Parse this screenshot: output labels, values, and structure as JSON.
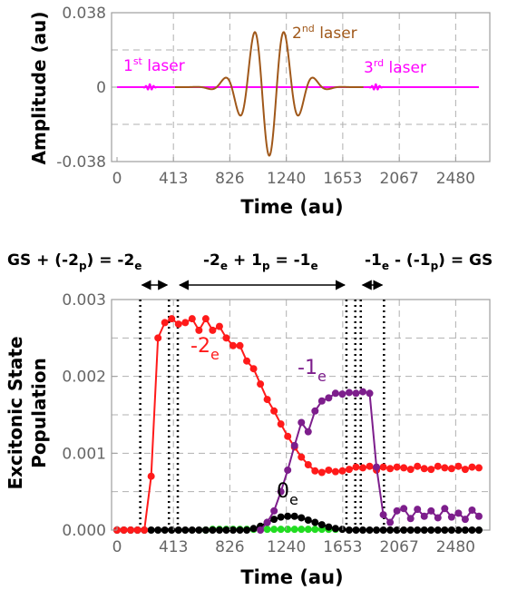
{
  "chart_data": [
    {
      "type": "line",
      "ylabel": "Amplitude (au)",
      "xlabel": "Time (au)",
      "xlim": [
        -40,
        2730
      ],
      "ylim": [
        -0.038,
        0.038
      ],
      "x_ticks": [
        "0",
        "413",
        "826",
        "1240",
        "1653",
        "2067",
        "2480"
      ],
      "y_ticks": [
        "-0.038",
        "0",
        "0.038"
      ],
      "grid": true,
      "colors": {
        "pulse1": "#ff00ff",
        "pulse2": "#a0581a",
        "pulse3": "#ff00ff"
      },
      "series": [
        {
          "key": "laser1",
          "label_main": "1",
          "label_sup": "st",
          "label_rest": " laser",
          "envelope": {
            "center": 240,
            "width": 30,
            "amplitude": 0.0015,
            "omega": 0.22
          }
        },
        {
          "key": "laser2",
          "label_main": "2",
          "label_sup": "nd",
          "label_rest": " laser",
          "envelope": {
            "center": 1115,
            "width": 230,
            "amplitude": 0.035,
            "omega": 0.0285
          }
        },
        {
          "key": "laser3",
          "label_main": "3",
          "label_sup": "rd",
          "label_rest": " laser",
          "envelope": {
            "center": 1895,
            "width": 30,
            "amplitude": 0.0015,
            "omega": 0.22
          }
        }
      ]
    },
    {
      "type": "line",
      "ylabel_lines": [
        "Excitonic State",
        "Population"
      ],
      "xlabel": "Time (au)",
      "xlim": [
        -40,
        2730
      ],
      "ylim": [
        0,
        0.003
      ],
      "x_ticks": [
        "0",
        "413",
        "826",
        "1240",
        "1653",
        "2067",
        "2480"
      ],
      "y_ticks": [
        "0.000",
        "0.001",
        "0.002",
        "0.003"
      ],
      "grid": true,
      "header": {
        "left_main": "GS + (-2",
        "left_sub": "p",
        "left_mid": ") = -2",
        "left_sub2": "e",
        "mid_main": "-2",
        "mid_sub": "e",
        "mid_mid": " + 1",
        "mid_sub2": "p",
        "mid_mid2": " = -1",
        "mid_sub3": "e",
        "right_main": "-1",
        "right_sub": "e",
        "right_mid": " - (-1",
        "right_sub2": "p",
        "right_end": ") = GS"
      },
      "vlines_x": [
        170,
        380,
        445,
        1680,
        1745,
        1785,
        1955
      ],
      "series": [
        {
          "key": "m2e",
          "name_main": "-2",
          "name_sub": "e",
          "color": "#ff1a1a",
          "x": [
            0,
            50,
            100,
            150,
            200,
            250,
            300,
            350,
            400,
            450,
            500,
            550,
            600,
            650,
            700,
            750,
            800,
            850,
            900,
            950,
            1000,
            1050,
            1100,
            1150,
            1200,
            1250,
            1300,
            1350,
            1400,
            1450,
            1500,
            1550,
            1600,
            1650,
            1700,
            1750,
            1800,
            1850,
            1900,
            1950,
            2000,
            2050,
            2100,
            2150,
            2200,
            2250,
            2300,
            2350,
            2400,
            2450,
            2500,
            2550,
            2600,
            2650
          ],
          "y": [
            0,
            0,
            0,
            0,
            0,
            0.0007,
            0.0025,
            0.0027,
            0.00275,
            0.00268,
            0.0027,
            0.00275,
            0.0026,
            0.00275,
            0.0026,
            0.00265,
            0.0025,
            0.0024,
            0.0024,
            0.0022,
            0.0021,
            0.0019,
            0.0017,
            0.00155,
            0.00138,
            0.00122,
            0.00108,
            0.00095,
            0.00085,
            0.00077,
            0.00075,
            0.00078,
            0.00076,
            0.00077,
            0.00079,
            0.00082,
            0.00081,
            0.00083,
            0.00078,
            0.00082,
            0.0008,
            0.00082,
            0.00081,
            0.00079,
            0.00083,
            0.0008,
            0.00079,
            0.00083,
            0.00081,
            0.0008,
            0.00083,
            0.00079,
            0.00082,
            0.00081
          ]
        },
        {
          "key": "m1e",
          "name_main": "-1",
          "name_sub": "e",
          "color": "#7d1e8c",
          "x": [
            1050,
            1100,
            1150,
            1200,
            1250,
            1300,
            1350,
            1400,
            1450,
            1500,
            1550,
            1600,
            1650,
            1700,
            1750,
            1800,
            1850,
            1900,
            1950,
            2000,
            2050,
            2100,
            2150,
            2200,
            2250,
            2300,
            2350,
            2400,
            2450,
            2500,
            2550,
            2600,
            2650
          ],
          "y": [
            0,
            0.0001,
            0.00025,
            0.0005,
            0.00078,
            0.0011,
            0.0014,
            0.00128,
            0.00155,
            0.00168,
            0.00172,
            0.00178,
            0.00177,
            0.00179,
            0.00178,
            0.0018,
            0.00178,
            0.00082,
            0.0002,
            0.0001,
            0.00025,
            0.00028,
            0.00015,
            0.00027,
            0.00018,
            0.00025,
            0.00016,
            0.00028,
            0.00017,
            0.00022,
            0.00014,
            0.00026,
            0.00018
          ]
        },
        {
          "key": "zeroe",
          "name_main": "0",
          "name_sub": "e",
          "color": "#000000",
          "x": [
            0,
            50,
            100,
            150,
            200,
            250,
            300,
            350,
            400,
            450,
            500,
            550,
            600,
            650,
            700,
            750,
            800,
            850,
            900,
            950,
            1000,
            1050,
            1100,
            1150,
            1200,
            1250,
            1300,
            1350,
            1400,
            1450,
            1500,
            1550,
            1600,
            1650,
            1700,
            1750,
            1800,
            1850,
            1900,
            1950,
            2000,
            2050,
            2100,
            2150,
            2200,
            2250,
            2300,
            2350,
            2400,
            2450,
            2500,
            2550,
            2600,
            2650
          ],
          "y": [
            0,
            0,
            0,
            0,
            0,
            0,
            0,
            0,
            0,
            0,
            0,
            0,
            0,
            0,
            0,
            0,
            0,
            0,
            0,
            0,
            2e-05,
            5e-05,
            0.0001,
            0.00014,
            0.00017,
            0.00018,
            0.00018,
            0.00016,
            0.00013,
            0.0001,
            7e-05,
            4e-05,
            2e-05,
            1e-05,
            0,
            0,
            0,
            0,
            0,
            0,
            0,
            0,
            0,
            0,
            0,
            0,
            0,
            0,
            0,
            0,
            0,
            0,
            0,
            0
          ]
        },
        {
          "key": "green",
          "color": "#22dd22",
          "x": [
            650,
            700,
            750,
            800,
            850,
            900,
            950,
            1000,
            1050,
            1100,
            1150,
            1200,
            1250,
            1300,
            1350,
            1400,
            1450,
            1500,
            1550,
            1600
          ],
          "y": [
            0,
            1e-05,
            1e-05,
            1e-05,
            1e-05,
            1e-05,
            1e-05,
            1e-05,
            1e-05,
            1e-05,
            1e-05,
            1e-05,
            1e-05,
            1e-05,
            1e-05,
            1e-05,
            1e-05,
            1e-05,
            1e-05,
            1e-05
          ]
        }
      ]
    }
  ]
}
